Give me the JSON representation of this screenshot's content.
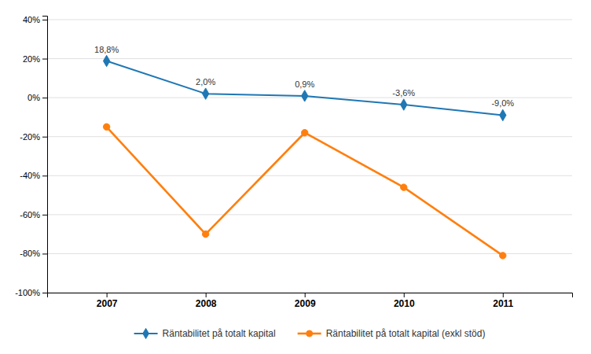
{
  "chart_data": {
    "type": "line",
    "x": [
      2007,
      2008,
      2009,
      2010,
      2011
    ],
    "xlim": [
      2006.4,
      2011.7
    ],
    "xticks": [
      2007,
      2008,
      2009,
      2010,
      2011
    ],
    "ylim": [
      -1.0,
      0.42
    ],
    "yticks": [
      {
        "value": -1.0,
        "label": "-100%"
      },
      {
        "value": -0.8,
        "label": "-80%"
      },
      {
        "value": -0.6,
        "label": "-60%"
      },
      {
        "value": -0.4,
        "label": "-40%"
      },
      {
        "value": -0.2,
        "label": "-20%"
      },
      {
        "value": 0.0,
        "label": "0%"
      },
      {
        "value": 0.2,
        "label": "20%"
      },
      {
        "value": 0.4,
        "label": "40%"
      }
    ],
    "grid": true,
    "legend": "bottom",
    "series": [
      {
        "name": "Räntabilitet på totalt kapital",
        "values": [
          0.188,
          0.02,
          0.009,
          -0.036,
          -0.09
        ],
        "value_labels": [
          "18,8%",
          "2,0%",
          "0,9%",
          "-3,6%",
          "-9,0%"
        ],
        "data_labels": true,
        "marker": "diamond"
      },
      {
        "name": "Räntabilitet på totalt kapital (exkl stöd)",
        "values": [
          -0.15,
          -0.7,
          -0.18,
          -0.46,
          -0.81
        ],
        "marker": "circle"
      }
    ]
  }
}
